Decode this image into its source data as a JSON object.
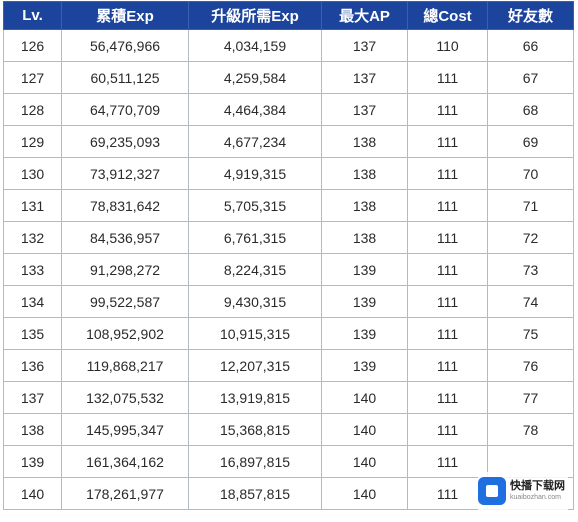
{
  "table": {
    "headers": [
      "Lv.",
      "累積Exp",
      "升級所需Exp",
      "最大AP",
      "總Cost",
      "好友數"
    ],
    "rows": [
      [
        "126",
        "56,476,966",
        "4,034,159",
        "137",
        "110",
        "66"
      ],
      [
        "127",
        "60,511,125",
        "4,259,584",
        "137",
        "111",
        "67"
      ],
      [
        "128",
        "64,770,709",
        "4,464,384",
        "137",
        "111",
        "68"
      ],
      [
        "129",
        "69,235,093",
        "4,677,234",
        "138",
        "111",
        "69"
      ],
      [
        "130",
        "73,912,327",
        "4,919,315",
        "138",
        "111",
        "70"
      ],
      [
        "131",
        "78,831,642",
        "5,705,315",
        "138",
        "111",
        "71"
      ],
      [
        "132",
        "84,536,957",
        "6,761,315",
        "138",
        "111",
        "72"
      ],
      [
        "133",
        "91,298,272",
        "8,224,315",
        "139",
        "111",
        "73"
      ],
      [
        "134",
        "99,522,587",
        "9,430,315",
        "139",
        "111",
        "74"
      ],
      [
        "135",
        "108,952,902",
        "10,915,315",
        "139",
        "111",
        "75"
      ],
      [
        "136",
        "119,868,217",
        "12,207,315",
        "139",
        "111",
        "76"
      ],
      [
        "137",
        "132,075,532",
        "13,919,815",
        "140",
        "111",
        "77"
      ],
      [
        "138",
        "145,995,347",
        "15,368,815",
        "140",
        "111",
        "78"
      ],
      [
        "139",
        "161,364,162",
        "16,897,815",
        "140",
        "111",
        ""
      ],
      [
        "140",
        "178,261,977",
        "18,857,815",
        "140",
        "111",
        ""
      ]
    ]
  },
  "watermark": {
    "title": "快播下载网",
    "subtitle": "kuaibozhan.com"
  },
  "colors": {
    "header_bg": "#1c449c",
    "header_text": "#ffffff",
    "grid": "#b3b9c6"
  }
}
